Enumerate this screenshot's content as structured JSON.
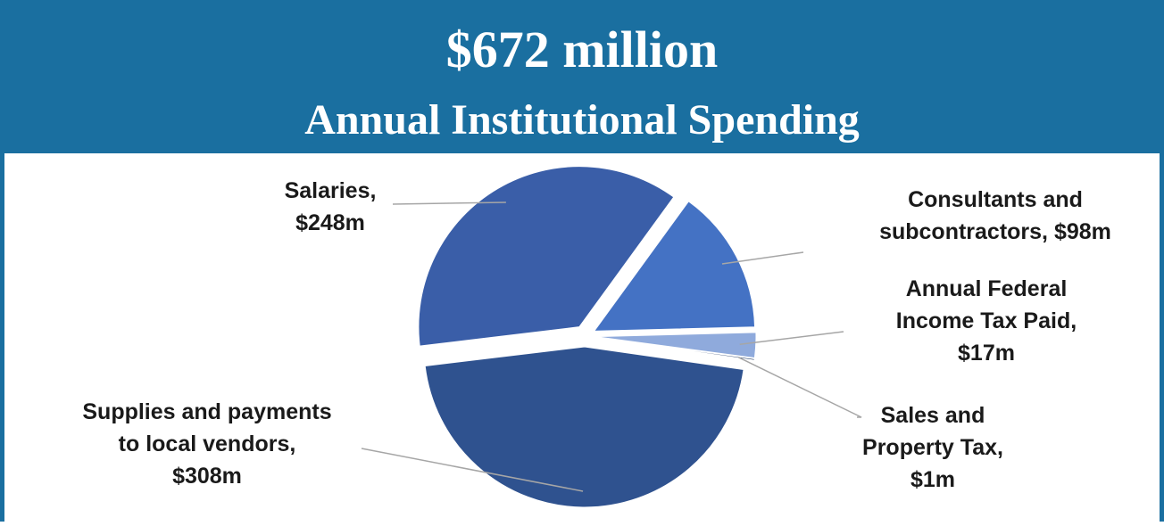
{
  "chart_data": {
    "type": "pie",
    "title": "$672 million",
    "subtitle": "Annual Institutional Spending",
    "values": [
      98,
      17,
      1,
      308,
      248
    ],
    "value_labels": [
      [
        "Consultants and",
        "subcontractors, $98m"
      ],
      [
        "Annual Federal",
        "Income Tax Paid,",
        "$17m"
      ],
      [
        "Sales and",
        "Property Tax,",
        "$1m"
      ],
      [
        "Supplies and payments",
        "to local vendors,",
        "$308m"
      ],
      [
        "Salaries,",
        "$248m"
      ]
    ],
    "colors": [
      "#4472c4",
      "#8faadc",
      "#1f3864",
      "#2f528f",
      "#3a5ea8"
    ]
  }
}
